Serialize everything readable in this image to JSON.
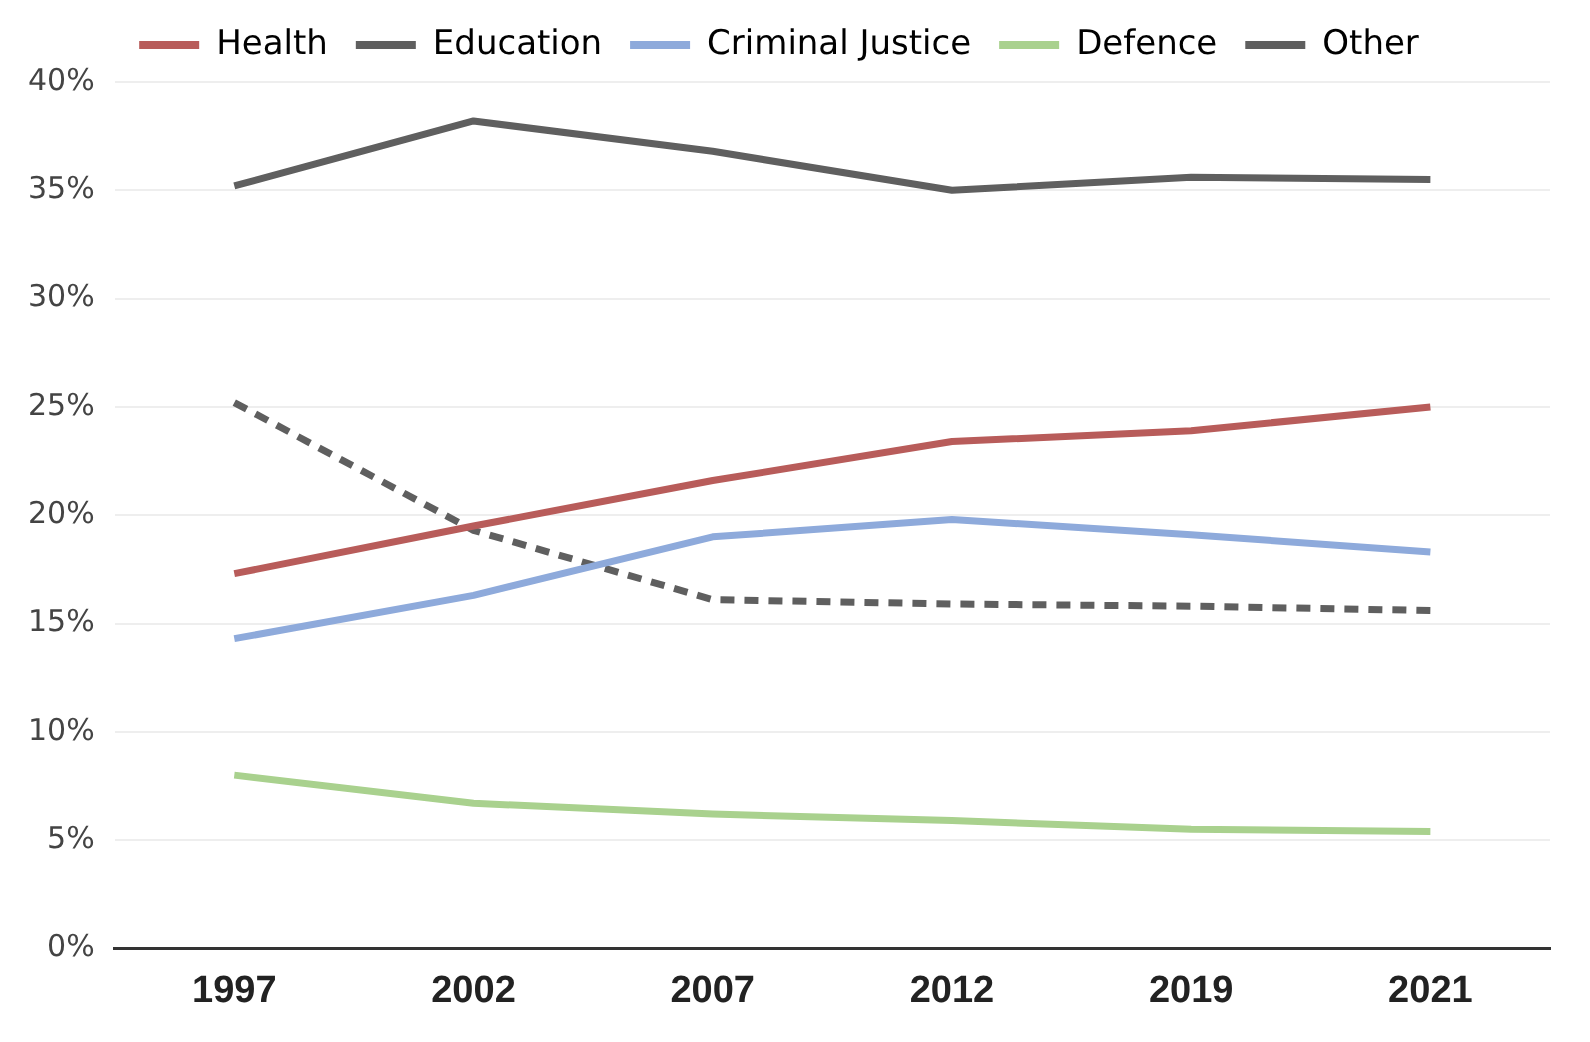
{
  "chart_data": {
    "type": "line",
    "categories": [
      "1997",
      "2002",
      "2007",
      "2012",
      "2019",
      "2021"
    ],
    "series": [
      {
        "name": "Health",
        "color": "#b85c5a",
        "values": [
          17.3,
          19.5,
          21.6,
          23.4,
          23.9,
          25.0
        ]
      },
      {
        "name": "Education",
        "color": "#5f5f5f",
        "values": [
          35.2,
          38.2,
          36.8,
          35.0,
          35.6,
          35.5
        ]
      },
      {
        "name": "Criminal Justice",
        "color": "#8eaadb",
        "values": [
          14.3,
          16.3,
          19.0,
          19.8,
          19.1,
          18.3
        ]
      },
      {
        "name": "Defence",
        "color": "#a9d18e",
        "values": [
          8.0,
          6.7,
          6.2,
          5.9,
          5.5,
          5.4
        ]
      },
      {
        "name": "Other",
        "color": "#5f5f5f",
        "line_style": "dashed",
        "values": [
          25.2,
          19.3,
          16.1,
          15.9,
          15.8,
          15.6
        ]
      }
    ],
    "ylim": [
      0,
      40
    ],
    "yticks": [
      {
        "value": 0,
        "label": "0%"
      },
      {
        "value": 5,
        "label": "5%"
      },
      {
        "value": 10,
        "label": "10%"
      },
      {
        "value": 15,
        "label": "15%"
      },
      {
        "value": 20,
        "label": "20%"
      },
      {
        "value": 25,
        "label": "25%"
      },
      {
        "value": 30,
        "label": "30%"
      },
      {
        "value": 35,
        "label": "35%"
      },
      {
        "value": 40,
        "label": "40%"
      }
    ],
    "grid": "y",
    "legend": "top",
    "marker": "none"
  }
}
